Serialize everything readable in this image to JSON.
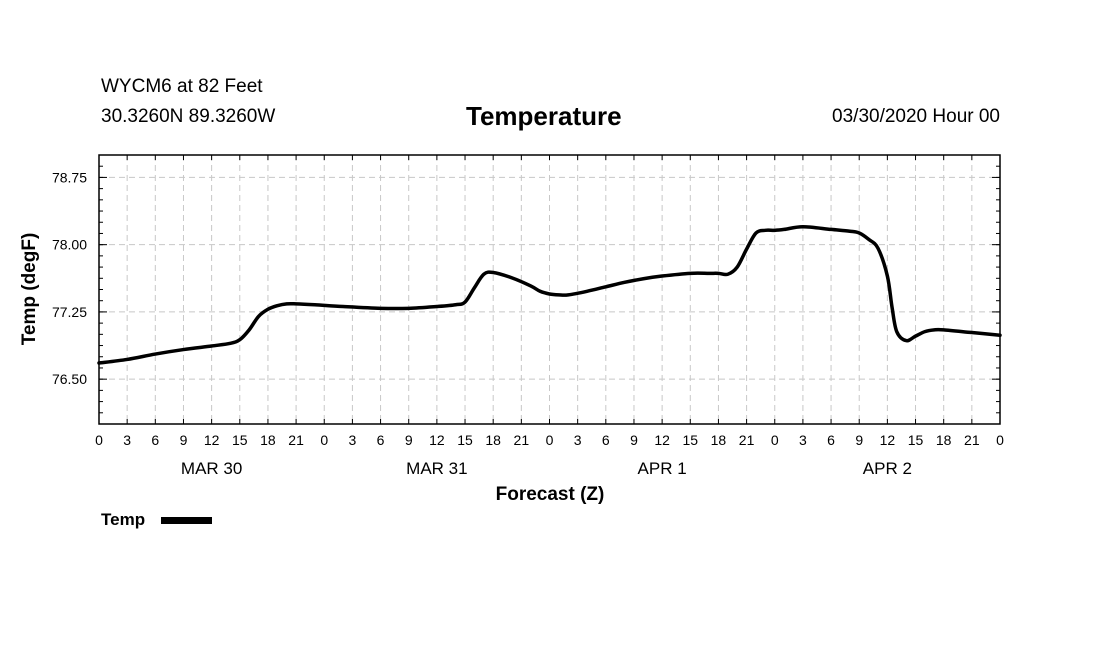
{
  "header": {
    "station": "WYCM6 at 82 Feet",
    "coords": "30.3260N 89.3260W",
    "title": "Temperature",
    "datetime": "03/30/2020 Hour 00"
  },
  "chart_data": {
    "type": "line",
    "title": "Temperature",
    "xlabel": "Forecast (Z)",
    "ylabel": "Temp (degF)",
    "ylim": [
      76.0,
      79.0
    ],
    "xlim": [
      0,
      96
    ],
    "yticks": [
      "76.50",
      "77.25",
      "78.00",
      "78.75"
    ],
    "ytick_values": [
      76.5,
      77.25,
      78.0,
      78.75
    ],
    "xtick_labels": [
      "0",
      "3",
      "6",
      "9",
      "12",
      "15",
      "18",
      "21",
      "0",
      "3",
      "6",
      "9",
      "12",
      "15",
      "18",
      "21",
      "0",
      "3",
      "6",
      "9",
      "12",
      "15",
      "18",
      "21",
      "0",
      "3",
      "6",
      "9",
      "12",
      "15",
      "18",
      "21",
      "0"
    ],
    "day_labels": [
      "MAR 30",
      "MAR 31",
      "APR 1",
      "APR 2"
    ],
    "grid": true,
    "legend": "bottom-left",
    "series": [
      {
        "name": "Temp",
        "color": "#000000",
        "x": [
          0,
          3,
          6,
          9,
          12,
          14,
          15,
          16,
          17,
          18,
          19,
          20,
          21,
          23,
          26,
          30,
          33,
          36,
          38,
          39,
          40,
          41,
          42,
          44,
          46,
          47,
          48,
          49,
          50,
          52,
          54,
          56,
          58,
          60,
          63,
          65,
          66,
          67,
          68,
          69,
          70,
          71,
          72,
          73,
          75,
          78,
          80,
          81,
          82,
          83,
          84,
          84.5,
          85,
          86,
          87,
          88,
          89,
          90,
          93,
          96
        ],
        "y": [
          76.68,
          76.72,
          76.78,
          76.83,
          76.87,
          76.9,
          76.94,
          77.05,
          77.2,
          77.28,
          77.32,
          77.34,
          77.34,
          77.33,
          77.31,
          77.29,
          77.29,
          77.31,
          77.33,
          77.36,
          77.52,
          77.67,
          77.69,
          77.63,
          77.54,
          77.48,
          77.45,
          77.44,
          77.44,
          77.48,
          77.53,
          77.58,
          77.62,
          77.65,
          77.68,
          77.68,
          77.68,
          77.67,
          77.75,
          77.95,
          78.13,
          78.16,
          78.16,
          78.17,
          78.2,
          78.17,
          78.15,
          78.13,
          78.06,
          77.96,
          77.65,
          77.3,
          77.03,
          76.93,
          76.98,
          77.03,
          77.05,
          77.05,
          77.02,
          76.99
        ]
      }
    ]
  }
}
